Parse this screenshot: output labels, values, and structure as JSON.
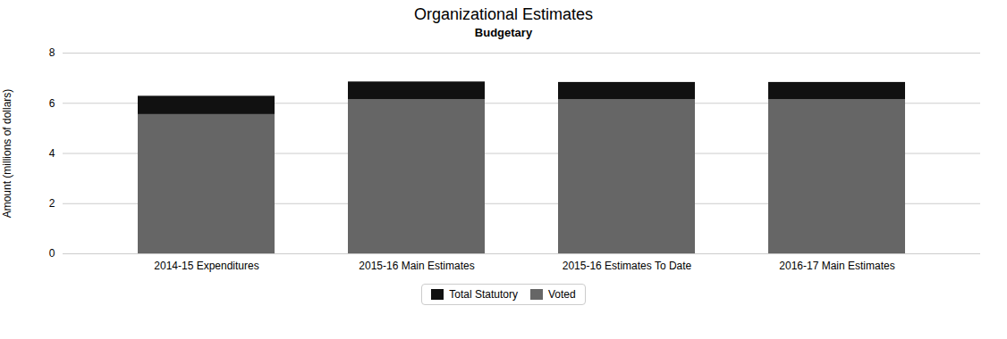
{
  "chart_data": {
    "type": "bar",
    "stacked": true,
    "title": "Organizational Estimates",
    "subtitle": "Budgetary",
    "ylabel": "Amount (millions of dollars)",
    "categories": [
      "2014-15 Expenditures",
      "2015-16 Main Estimates",
      "2015-16 Estimates To Date",
      "2016-17 Main Estimates"
    ],
    "series": [
      {
        "name": "Voted",
        "color": "#666666",
        "values": [
          5.55,
          6.15,
          6.15,
          6.15
        ]
      },
      {
        "name": "Total Statutory",
        "color": "#111111",
        "values": [
          0.73,
          0.7,
          0.68,
          0.68
        ]
      }
    ],
    "ylim": [
      0,
      8
    ],
    "yticks": [
      0,
      2,
      4,
      6,
      8
    ],
    "grid": true,
    "legend": "bottom"
  }
}
